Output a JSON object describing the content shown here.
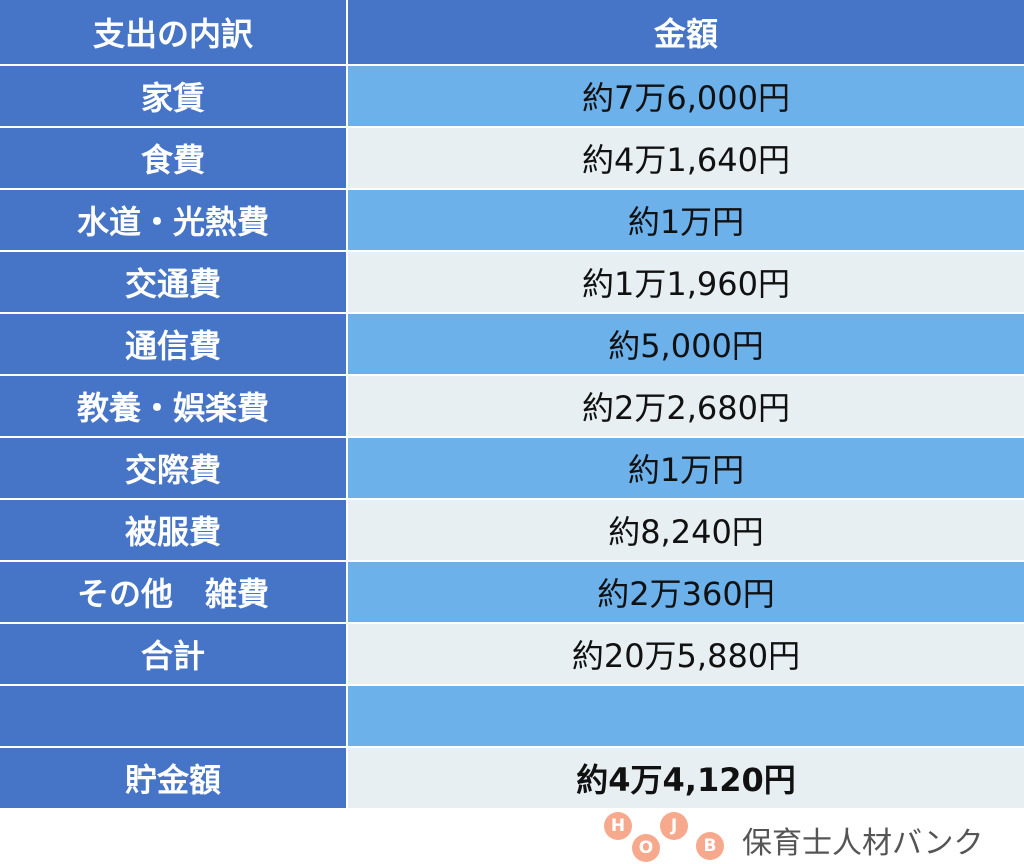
{
  "table": {
    "header": [
      "支出の内訳",
      "金額"
    ],
    "rows": [
      [
        "家賃",
        "約7万6,000円"
      ],
      [
        "食費",
        "約4万1,640円"
      ],
      [
        "水道・光熱費",
        "約1万円"
      ],
      [
        "交通費",
        "約1万1,960円"
      ],
      [
        "通信費",
        "約5,000円"
      ],
      [
        "教養・娯楽費",
        "約2万2,680円"
      ],
      [
        "交際費",
        "約1万円"
      ],
      [
        "被服費",
        "約8,240円"
      ],
      [
        "その他　雑費",
        "約2万360円"
      ],
      [
        "合計",
        "約20万5,880円"
      ]
    ],
    "savings": [
      "貯金額",
      "約4万4,120円"
    ]
  },
  "logo": {
    "letters": [
      "H",
      "O",
      "J",
      "B"
    ],
    "name": "保育士人材バンク"
  }
}
